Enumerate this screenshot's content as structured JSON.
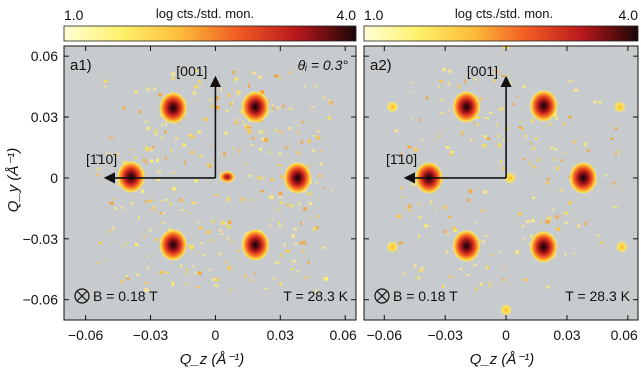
{
  "colorbar": {
    "min_label": "1.0",
    "max_label": "4.0",
    "title": "log cts./std. mon."
  },
  "ylabel": "Q_y (Å⁻¹)",
  "xlabel": "Q_z (Å⁻¹)",
  "axis_tick_labels": [
    "−0.06",
    "−0.03",
    "0",
    "0.03",
    "0.06"
  ],
  "panels": [
    {
      "label": "a1)",
      "direction_up": "[001]",
      "direction_left": "[1̄10]",
      "angle_text": "θᵢ = 0.3°",
      "field_text": "B = 0.18 T",
      "temp_text": "T = 28.3 K"
    },
    {
      "label": "a2)",
      "direction_up": "[001]",
      "direction_left": "[1̄10]",
      "angle_text": "",
      "field_text": "B = 0.18 T",
      "temp_text": "T = 28.3 K"
    }
  ],
  "chart_data": {
    "type": "heatmap",
    "xlabel": "Q_z (Å⁻¹)",
    "ylabel": "Q_y (Å⁻¹)",
    "xlim": [
      -0.07,
      0.065
    ],
    "ylim": [
      -0.07,
      0.065
    ],
    "xticks": [
      -0.06,
      -0.03,
      0,
      0.03,
      0.06
    ],
    "yticks": [
      -0.06,
      -0.03,
      0,
      0.03,
      0.06
    ],
    "colorbar_range": [
      1.0,
      4.0
    ],
    "colorbar_label": "log cts./std. mon.",
    "background_color": "#c8cbcd",
    "panels": [
      {
        "name": "a1)",
        "peaks": [
          {
            "qz": -0.0195,
            "qy": 0.0345,
            "intensity": 3.6
          },
          {
            "qz": 0.0185,
            "qy": 0.035,
            "intensity": 3.9
          },
          {
            "qz": -0.039,
            "qy": 0.0005,
            "intensity": 3.5
          },
          {
            "qz": 0.038,
            "qy": 0.0,
            "intensity": 3.9
          },
          {
            "qz": 0.0055,
            "qy": 0.0005,
            "intensity": 2.6
          },
          {
            "qz": -0.0195,
            "qy": -0.033,
            "intensity": 3.6
          },
          {
            "qz": 0.0185,
            "qy": -0.033,
            "intensity": 3.8
          }
        ]
      },
      {
        "name": "a2)",
        "peaks": [
          {
            "qz": -0.0195,
            "qy": 0.035,
            "intensity": 3.7
          },
          {
            "qz": 0.0185,
            "qy": 0.0355,
            "intensity": 3.9
          },
          {
            "qz": -0.038,
            "qy": 0.0,
            "intensity": 3.5
          },
          {
            "qz": 0.038,
            "qy": 0.0,
            "intensity": 3.8
          },
          {
            "qz": -0.0195,
            "qy": -0.0335,
            "intensity": 3.7
          },
          {
            "qz": 0.0185,
            "qy": -0.034,
            "intensity": 3.9
          },
          {
            "qz": -0.056,
            "qy": 0.035,
            "intensity": 1.6
          },
          {
            "qz": 0.056,
            "qy": 0.035,
            "intensity": 1.6
          },
          {
            "qz": -0.056,
            "qy": -0.034,
            "intensity": 1.6
          },
          {
            "qz": 0.057,
            "qy": -0.034,
            "intensity": 1.7
          },
          {
            "qz": 0.0,
            "qy": 0.066,
            "intensity": 1.5
          },
          {
            "qz": 0.0,
            "qy": -0.065,
            "intensity": 1.5
          },
          {
            "qz": 0.002,
            "qy": 0.0,
            "intensity": 1.6
          }
        ]
      }
    ]
  }
}
